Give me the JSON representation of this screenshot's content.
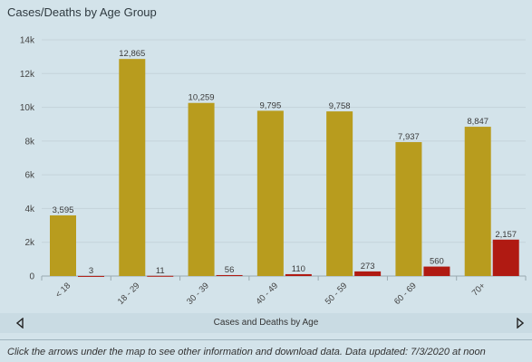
{
  "panel": {
    "title": "Cases/Deaths by Age Group"
  },
  "navigation": {
    "label": "Cases and Deaths by Age",
    "prev_icon": "triangle-left-icon",
    "next_icon": "triangle-right-icon"
  },
  "footer": {
    "note": "Click the arrows under the map to see other information and download data. Data updated: 7/3/2020 at noon"
  },
  "colors": {
    "cases": "#b89c1e",
    "deaths": "#b01a12",
    "background": "#d3e3ea",
    "grid": "#c4d3da"
  },
  "chart_data": {
    "type": "bar",
    "categories": [
      "< 18",
      "18 - 29",
      "30 - 39",
      "40 - 49",
      "50 - 59",
      "60 - 69",
      "70+"
    ],
    "series": [
      {
        "values": [
          3595,
          12865,
          10259,
          9795,
          9758,
          7937,
          8847
        ],
        "labels": [
          "3,595",
          "12,865",
          "10,259",
          "9,795",
          "9,758",
          "7,937",
          "8,847"
        ]
      },
      {
        "values": [
          3,
          11,
          56,
          110,
          273,
          560,
          2157
        ],
        "labels": [
          "3",
          "11",
          "56",
          "110",
          "273",
          "560",
          "2,157"
        ]
      }
    ],
    "ylim": [
      0,
      14000
    ],
    "yticks": [
      0,
      2000,
      4000,
      6000,
      8000,
      10000,
      12000,
      14000
    ],
    "ytick_labels": [
      "0",
      "2k",
      "4k",
      "6k",
      "8k",
      "10k",
      "12k",
      "14k"
    ],
    "grid": true,
    "legend": "none"
  }
}
